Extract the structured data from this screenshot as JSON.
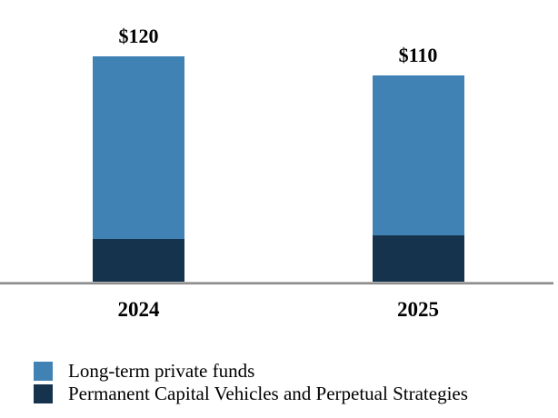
{
  "chart_data": {
    "type": "bar",
    "stacked": true,
    "title": "",
    "xlabel": "",
    "ylabel": "",
    "grid": false,
    "legend_position": "bottom-left",
    "categories": [
      "2024",
      "2025"
    ],
    "series": [
      {
        "name": "Long-term private funds",
        "color": "#4182B5",
        "values": [
          97,
          85
        ]
      },
      {
        "name": "Permanent Capital Vehicles and Perpetual Strategies",
        "color": "#16334E",
        "values": [
          23,
          25
        ]
      }
    ],
    "total_labels": [
      "$120",
      "$110"
    ],
    "ylim": [
      0,
      120
    ],
    "axis_color": "#808080",
    "text_color": "#000000"
  }
}
